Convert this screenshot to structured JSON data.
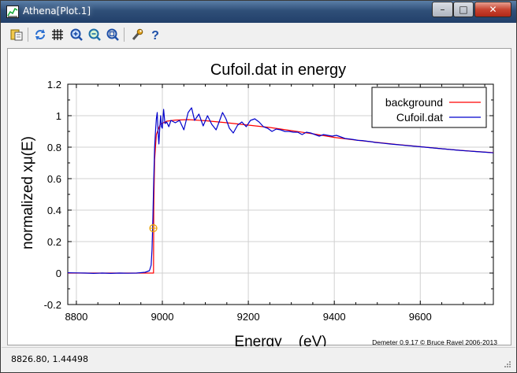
{
  "window": {
    "title": "Athena[Plot.1]",
    "buttons": {
      "minimize": "–",
      "maximize": "□",
      "close": "✕"
    }
  },
  "toolbar": {
    "icons": [
      "save-icon",
      "refresh-icon",
      "grid-icon",
      "zoom-in-icon",
      "zoom-out-icon",
      "zoom-reset-icon",
      "settings-icon",
      "help-icon"
    ]
  },
  "status": {
    "coords": "8826.80,  1.44498"
  },
  "chart_data": {
    "type": "line",
    "title": "Cufoil.dat in energy",
    "xlabel": "Energy    (eV)",
    "ylabel": "normalized xμ(E)",
    "xlim": [
      8780,
      9770
    ],
    "ylim": [
      -0.2,
      1.2
    ],
    "xticks": [
      8800,
      9000,
      9200,
      9400,
      9600
    ],
    "yticks": [
      -0.2,
      0,
      0.2,
      0.4,
      0.6,
      0.8,
      1,
      1.2
    ],
    "grid": true,
    "legend_position": "top-right",
    "credit": "Demeter 0.9.17 © Bruce Ravel 2006-2013",
    "marker": {
      "x": 8979,
      "y": 0.285,
      "color": "#e8a000"
    },
    "series": [
      {
        "name": "background",
        "color": "#ff0000",
        "points": [
          [
            8780,
            0.0
          ],
          [
            8960,
            0.0
          ],
          [
            8979.5,
            0.0
          ],
          [
            8979.5,
            0.0
          ],
          [
            8980,
            0.42
          ],
          [
            8982,
            0.72
          ],
          [
            8986,
            0.88
          ],
          [
            8995,
            0.945
          ],
          [
            9010,
            0.965
          ],
          [
            9030,
            0.972
          ],
          [
            9060,
            0.975
          ],
          [
            9100,
            0.968
          ],
          [
            9150,
            0.955
          ],
          [
            9200,
            0.94
          ],
          [
            9250,
            0.925
          ],
          [
            9300,
            0.905
          ],
          [
            9350,
            0.885
          ],
          [
            9400,
            0.862
          ],
          [
            9450,
            0.845
          ],
          [
            9500,
            0.83
          ],
          [
            9550,
            0.816
          ],
          [
            9600,
            0.803
          ],
          [
            9650,
            0.79
          ],
          [
            9700,
            0.778
          ],
          [
            9770,
            0.765
          ]
        ]
      },
      {
        "name": "Cufoil.dat",
        "color": "#0000cc",
        "points": [
          [
            8780,
            0.002
          ],
          [
            8800,
            0.001
          ],
          [
            8820,
            0.0
          ],
          [
            8840,
            -0.002
          ],
          [
            8860,
            0.0
          ],
          [
            8880,
            -0.002
          ],
          [
            8900,
            0.0
          ],
          [
            8920,
            -0.001
          ],
          [
            8940,
            0.0
          ],
          [
            8960,
            0.005
          ],
          [
            8970,
            0.015
          ],
          [
            8974,
            0.05
          ],
          [
            8976,
            0.15
          ],
          [
            8978,
            0.35
          ],
          [
            8980,
            0.6
          ],
          [
            8982,
            0.8
          ],
          [
            8984,
            0.9
          ],
          [
            8986,
            0.98
          ],
          [
            8988,
            1.02
          ],
          [
            8990,
            0.9
          ],
          [
            8992,
            0.82
          ],
          [
            8994,
            0.92
          ],
          [
            8996,
            1.0
          ],
          [
            8998,
            0.93
          ],
          [
            9000,
            0.92
          ],
          [
            9003,
            1.04
          ],
          [
            9006,
            0.95
          ],
          [
            9010,
            0.96
          ],
          [
            9015,
            0.93
          ],
          [
            9020,
            0.97
          ],
          [
            9030,
            0.955
          ],
          [
            9040,
            0.97
          ],
          [
            9050,
            0.91
          ],
          [
            9060,
            1.02
          ],
          [
            9068,
            1.05
          ],
          [
            9075,
            0.97
          ],
          [
            9085,
            1.01
          ],
          [
            9095,
            0.935
          ],
          [
            9105,
            1.0
          ],
          [
            9115,
            0.945
          ],
          [
            9125,
            0.91
          ],
          [
            9132,
            0.96
          ],
          [
            9140,
            1.02
          ],
          [
            9148,
            0.98
          ],
          [
            9156,
            0.92
          ],
          [
            9165,
            0.89
          ],
          [
            9175,
            0.94
          ],
          [
            9185,
            0.96
          ],
          [
            9195,
            0.93
          ],
          [
            9205,
            0.97
          ],
          [
            9215,
            0.98
          ],
          [
            9225,
            0.96
          ],
          [
            9235,
            0.93
          ],
          [
            9245,
            0.92
          ],
          [
            9255,
            0.9
          ],
          [
            9265,
            0.915
          ],
          [
            9275,
            0.91
          ],
          [
            9285,
            0.9
          ],
          [
            9295,
            0.9
          ],
          [
            9305,
            0.895
          ],
          [
            9315,
            0.895
          ],
          [
            9325,
            0.88
          ],
          [
            9335,
            0.895
          ],
          [
            9345,
            0.89
          ],
          [
            9355,
            0.88
          ],
          [
            9365,
            0.87
          ],
          [
            9375,
            0.88
          ],
          [
            9385,
            0.875
          ],
          [
            9395,
            0.87
          ],
          [
            9405,
            0.875
          ],
          [
            9415,
            0.865
          ],
          [
            9425,
            0.855
          ],
          [
            9435,
            0.852
          ],
          [
            9445,
            0.848
          ],
          [
            9455,
            0.843
          ],
          [
            9465,
            0.842
          ],
          [
            9475,
            0.838
          ],
          [
            9485,
            0.835
          ],
          [
            9495,
            0.83
          ],
          [
            9510,
            0.826
          ],
          [
            9530,
            0.82
          ],
          [
            9550,
            0.815
          ],
          [
            9570,
            0.81
          ],
          [
            9590,
            0.805
          ],
          [
            9610,
            0.8
          ],
          [
            9630,
            0.795
          ],
          [
            9650,
            0.79
          ],
          [
            9670,
            0.785
          ],
          [
            9690,
            0.78
          ],
          [
            9710,
            0.776
          ],
          [
            9730,
            0.772
          ],
          [
            9750,
            0.768
          ],
          [
            9770,
            0.764
          ]
        ]
      }
    ]
  }
}
